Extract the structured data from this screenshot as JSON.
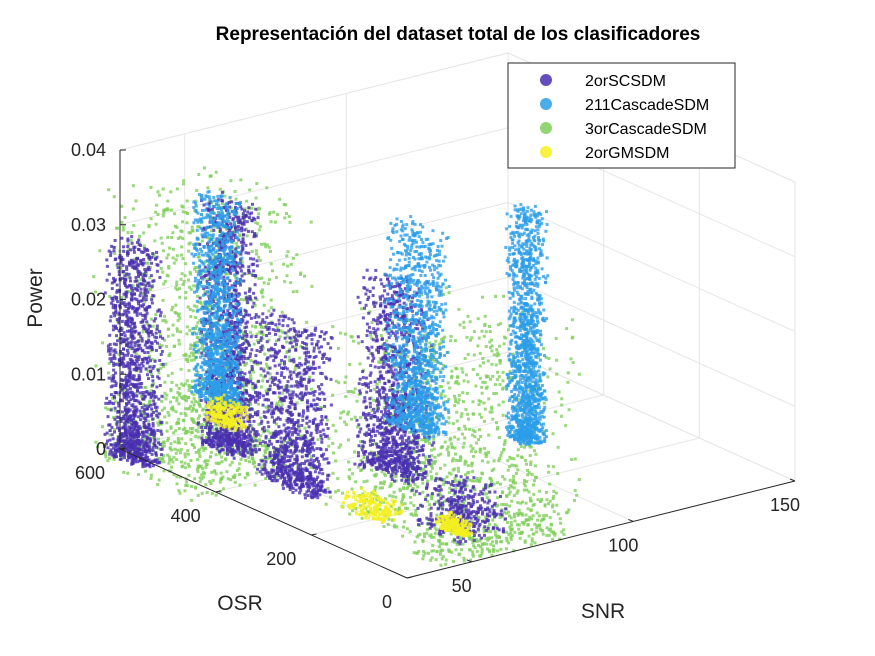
{
  "chart_data": {
    "type": "scatter",
    "title": "Representación del dataset total de los clasificadores",
    "xlabel": "SNR",
    "ylabel": "OSR",
    "zlabel": "Power",
    "xlim": [
      30,
      150
    ],
    "ylim": [
      0,
      600
    ],
    "zlim": [
      0,
      0.04
    ],
    "xticks": [
      "50",
      "100",
      "150"
    ],
    "yticks": [
      "0",
      "200",
      "400",
      "600"
    ],
    "zticks": [
      "0",
      "0.01",
      "0.02",
      "0.03",
      "0.04"
    ],
    "grid": true,
    "legend_position": "top-right",
    "series": [
      {
        "name": "2orSCSDM",
        "color": "#4a2fb0",
        "clusters": [
          {
            "x": [
              25,
              32
            ],
            "y": [
              520,
              600
            ],
            "z": [
              0,
              0.029
            ]
          },
          {
            "x": [
              48,
              56
            ],
            "y": [
              480,
              560
            ],
            "z": [
              0,
              0.033
            ]
          },
          {
            "x": [
              45,
              52
            ],
            "y": [
              300,
              420
            ],
            "z": [
              0,
              0.022
            ]
          },
          {
            "x": [
              70,
              80
            ],
            "y": [
              280,
              380
            ],
            "z": [
              0,
              0.026
            ]
          },
          {
            "x": [
              55,
              70
            ],
            "y": [
              60,
              160
            ],
            "z": [
              0,
              0.006
            ]
          }
        ]
      },
      {
        "name": "211CascadeSDM",
        "color": "#2c9de8",
        "clusters": [
          {
            "x": [
              52,
              58
            ],
            "y": [
              530,
              600
            ],
            "z": [
              0.005,
              0.032
            ]
          },
          {
            "x": [
              85,
              92
            ],
            "y": [
              330,
              420
            ],
            "z": [
              0.003,
              0.03
            ]
          },
          {
            "x": [
              112,
              118
            ],
            "y": [
              300,
              350
            ],
            "z": [
              0,
              0.031
            ]
          }
        ]
      },
      {
        "name": "3orCascadeSDM",
        "color": "#7fcf5a",
        "clusters": [
          {
            "x": [
              20,
              60
            ],
            "y": [
              380,
              600
            ],
            "z": [
              0,
              0.036
            ]
          },
          {
            "x": [
              45,
              95
            ],
            "y": [
              60,
              300
            ],
            "z": [
              0,
              0.025
            ]
          },
          {
            "x": [
              40,
              80
            ],
            "y": [
              0,
              60
            ],
            "z": [
              0,
              0.004
            ]
          }
        ]
      },
      {
        "name": "2orGMSDM",
        "color": "#f4f020",
        "clusters": [
          {
            "x": [
              50,
              55
            ],
            "y": [
              500,
              560
            ],
            "z": [
              0.003,
              0.006
            ]
          },
          {
            "x": [
              48,
              56
            ],
            "y": [
              180,
              260
            ],
            "z": [
              0,
              0.002
            ]
          },
          {
            "x": [
              58,
              62
            ],
            "y": [
              80,
              130
            ],
            "z": [
              0,
              0.002
            ]
          }
        ]
      }
    ]
  }
}
